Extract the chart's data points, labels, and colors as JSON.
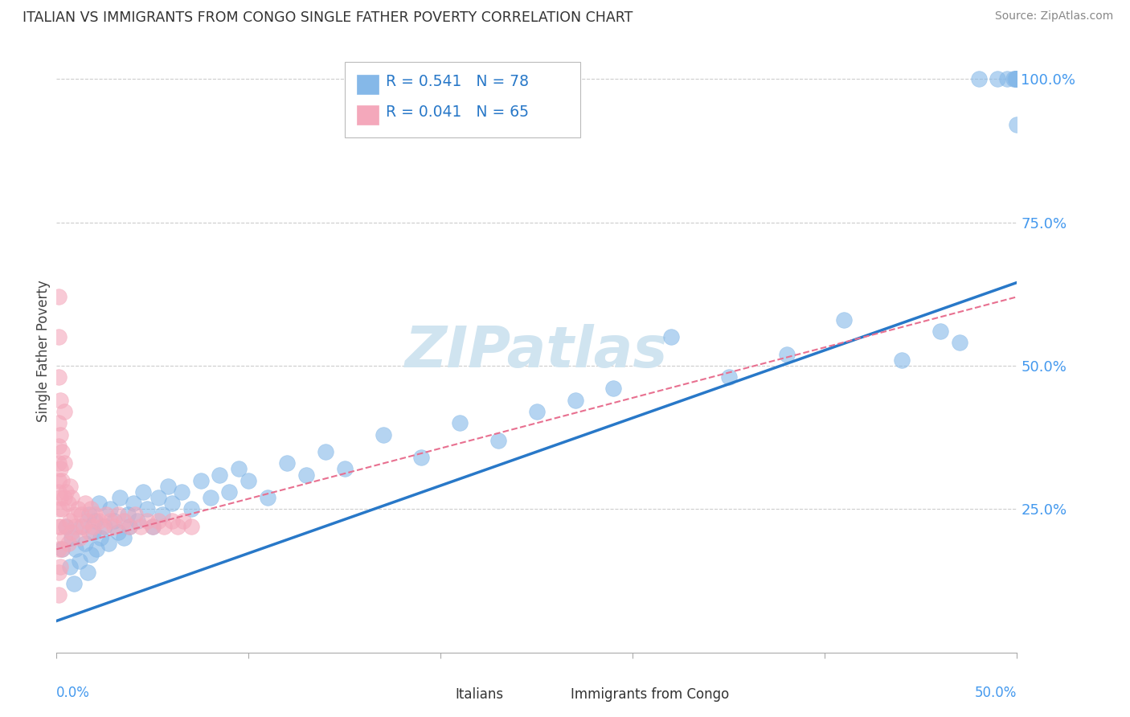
{
  "title": "ITALIAN VS IMMIGRANTS FROM CONGO SINGLE FATHER POVERTY CORRELATION CHART",
  "source": "Source: ZipAtlas.com",
  "ylabel": "Single Father Poverty",
  "xmin": 0.0,
  "xmax": 0.5,
  "ymin": 0.0,
  "ymax": 1.05,
  "yticks": [
    0.25,
    0.5,
    0.75,
    1.0
  ],
  "yticklabels": [
    "25.0%",
    "50.0%",
    "75.0%",
    "100.0%"
  ],
  "italian_color": "#85b8e8",
  "congo_color": "#f4a8bb",
  "italian_line_color": "#2878c8",
  "congo_line_color": "#e87090",
  "background_color": "#ffffff",
  "grid_color": "#cccccc",
  "watermark_color": "#d0e4f0",
  "legend_italian_R": "0.541",
  "legend_italian_N": "78",
  "legend_congo_R": "0.041",
  "legend_congo_N": "65",
  "italian_x": [
    0.003,
    0.005,
    0.007,
    0.008,
    0.009,
    0.01,
    0.012,
    0.013,
    0.015,
    0.016,
    0.017,
    0.018,
    0.019,
    0.02,
    0.021,
    0.022,
    0.023,
    0.025,
    0.027,
    0.028,
    0.03,
    0.032,
    0.033,
    0.035,
    0.037,
    0.038,
    0.04,
    0.042,
    0.045,
    0.047,
    0.05,
    0.053,
    0.055,
    0.058,
    0.06,
    0.065,
    0.07,
    0.075,
    0.08,
    0.085,
    0.09,
    0.095,
    0.1,
    0.11,
    0.12,
    0.13,
    0.14,
    0.15,
    0.17,
    0.19,
    0.21,
    0.23,
    0.25,
    0.27,
    0.29,
    0.32,
    0.35,
    0.38,
    0.41,
    0.44,
    0.46,
    0.47,
    0.48,
    0.49,
    0.495,
    0.498,
    0.499,
    0.5,
    0.5,
    0.5,
    0.5,
    0.5,
    0.5,
    0.5,
    0.5,
    0.5,
    0.5,
    0.5
  ],
  "italian_y": [
    0.18,
    0.22,
    0.15,
    0.2,
    0.12,
    0.18,
    0.16,
    0.22,
    0.19,
    0.14,
    0.24,
    0.17,
    0.21,
    0.23,
    0.18,
    0.26,
    0.2,
    0.22,
    0.19,
    0.25,
    0.23,
    0.21,
    0.27,
    0.2,
    0.24,
    0.22,
    0.26,
    0.23,
    0.28,
    0.25,
    0.22,
    0.27,
    0.24,
    0.29,
    0.26,
    0.28,
    0.25,
    0.3,
    0.27,
    0.31,
    0.28,
    0.32,
    0.3,
    0.27,
    0.33,
    0.31,
    0.35,
    0.32,
    0.38,
    0.34,
    0.4,
    0.37,
    0.42,
    0.44,
    0.46,
    0.55,
    0.48,
    0.52,
    0.58,
    0.51,
    0.56,
    0.54,
    1.0,
    1.0,
    1.0,
    1.0,
    1.0,
    1.0,
    1.0,
    1.0,
    1.0,
    1.0,
    1.0,
    0.92,
    1.0,
    1.0,
    1.0,
    1.0
  ],
  "congo_x": [
    0.001,
    0.001,
    0.001,
    0.001,
    0.001,
    0.001,
    0.001,
    0.001,
    0.001,
    0.001,
    0.002,
    0.002,
    0.002,
    0.002,
    0.003,
    0.003,
    0.003,
    0.004,
    0.004,
    0.004,
    0.005,
    0.005,
    0.006,
    0.006,
    0.007,
    0.007,
    0.008,
    0.008,
    0.009,
    0.01,
    0.011,
    0.012,
    0.013,
    0.014,
    0.015,
    0.016,
    0.017,
    0.018,
    0.019,
    0.02,
    0.022,
    0.024,
    0.026,
    0.028,
    0.03,
    0.032,
    0.035,
    0.038,
    0.041,
    0.044,
    0.047,
    0.05,
    0.053,
    0.056,
    0.06,
    0.063,
    0.066,
    0.07,
    0.001,
    0.001,
    0.001,
    0.002,
    0.002,
    0.003,
    0.004
  ],
  "congo_y": [
    0.1,
    0.14,
    0.18,
    0.22,
    0.25,
    0.28,
    0.3,
    0.33,
    0.36,
    0.4,
    0.15,
    0.22,
    0.27,
    0.32,
    0.18,
    0.25,
    0.3,
    0.2,
    0.27,
    0.33,
    0.22,
    0.28,
    0.19,
    0.26,
    0.23,
    0.29,
    0.21,
    0.27,
    0.24,
    0.22,
    0.25,
    0.2,
    0.24,
    0.22,
    0.26,
    0.23,
    0.21,
    0.25,
    0.22,
    0.24,
    0.23,
    0.22,
    0.24,
    0.23,
    0.22,
    0.24,
    0.23,
    0.22,
    0.24,
    0.22,
    0.23,
    0.22,
    0.23,
    0.22,
    0.23,
    0.22,
    0.23,
    0.22,
    0.55,
    0.62,
    0.48,
    0.44,
    0.38,
    0.35,
    0.42
  ],
  "italian_line_x0": 0.0,
  "italian_line_y0": 0.055,
  "italian_line_x1": 0.5,
  "italian_line_y1": 0.645,
  "congo_line_x0": 0.0,
  "congo_line_y0": 0.18,
  "congo_line_x1": 0.5,
  "congo_line_y1": 0.62
}
